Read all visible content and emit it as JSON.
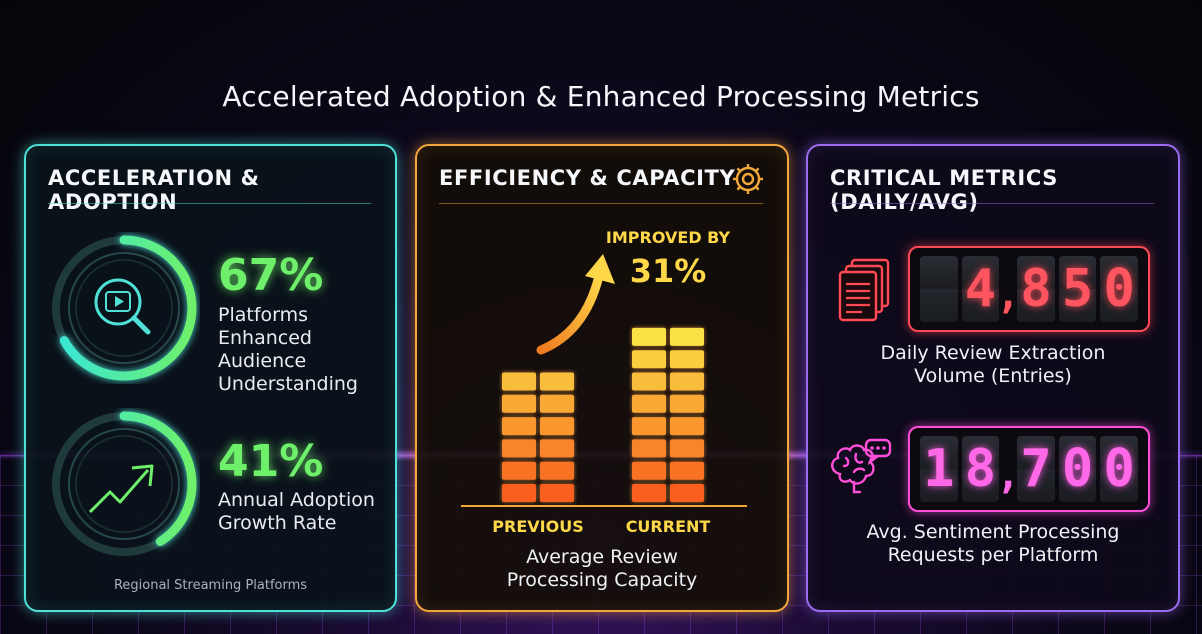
{
  "title": "Accelerated Adoption & Enhanced Processing Metrics",
  "colors": {
    "cyan": "#4fe0d6",
    "green": "#6ff06a",
    "orange": "#f3a63a",
    "purple": "#9c6cf0",
    "red": "#ff4a55",
    "pink": "#ff4fd8"
  },
  "adoption": {
    "title": "ACCELERATION & ADOPTION",
    "stats": [
      {
        "value": "67%",
        "fraction": 0.67,
        "icon": "play-search-icon",
        "desc": [
          "Platforms",
          "Enhanced Audience",
          "Understanding"
        ]
      },
      {
        "value": "41%",
        "fraction": 0.41,
        "icon": "trend-up-icon",
        "desc": [
          "Annual Adoption",
          "Growth Rate"
        ]
      }
    ],
    "footnote": "Regional Streaming Platforms"
  },
  "efficiency": {
    "title": "EFFICIENCY & CAPACITY",
    "gear_icon": "gear-icon",
    "improved_label": "IMPROVED BY",
    "improved_value": "31%",
    "caption": [
      "Average Review",
      "Processing Capacity"
    ],
    "chart_data": {
      "type": "bar",
      "categories": [
        "PREVIOUS",
        "CURRENT"
      ],
      "values": [
        100,
        131
      ],
      "annotation": "IMPROVED BY 31%"
    }
  },
  "critical": {
    "title": "CRITICAL METRICS (DAILY/AVG)",
    "metrics": [
      {
        "value": "4,850",
        "icon": "documents-icon",
        "caption": [
          "Daily Review Extraction",
          "Volume (Entries)"
        ]
      },
      {
        "value": "18,700",
        "icon": "brain-chat-icon",
        "caption": [
          "Avg. Sentiment Processing",
          "Requests per Platform"
        ]
      }
    ]
  }
}
